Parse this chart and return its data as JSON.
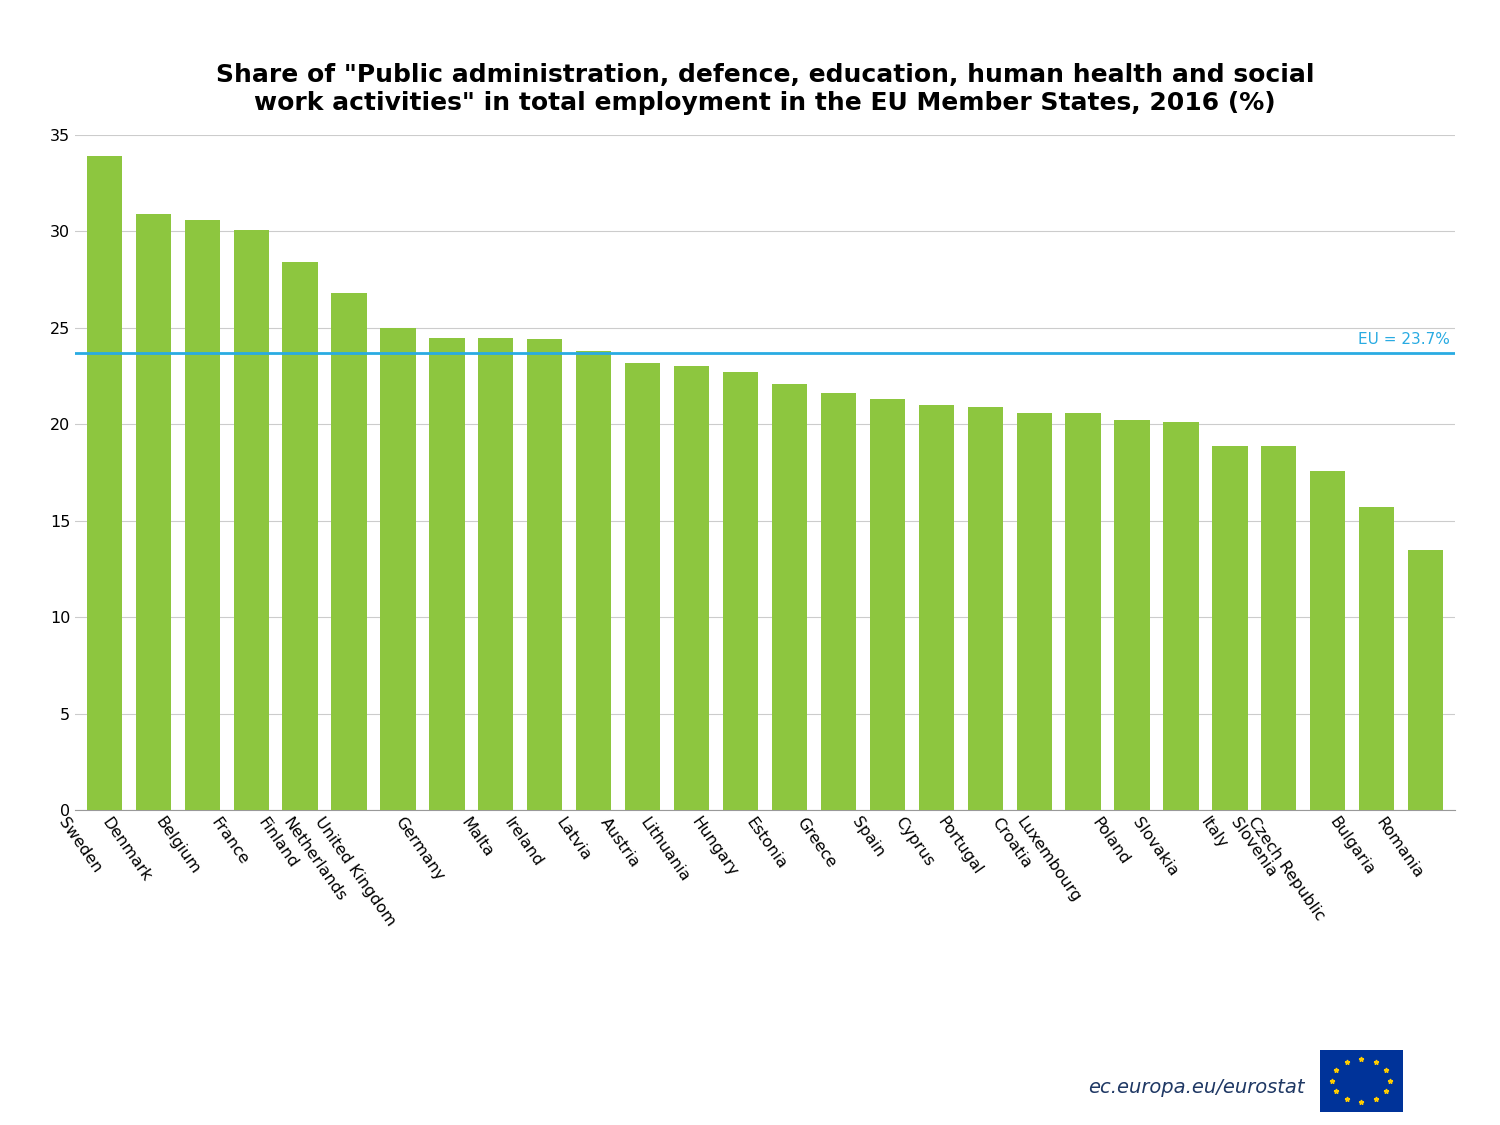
{
  "title": "Share of \"Public administration, defence, education, human health and social\nwork activities\" in total employment in the EU Member States, 2016 (%)",
  "categories": [
    "Sweden",
    "Denmark",
    "Belgium",
    "France",
    "Finland",
    "Netherlands",
    "United Kingdom",
    "Germany",
    "Malta",
    "Ireland",
    "Latvia",
    "Austria",
    "Lithuania",
    "Hungary",
    "Estonia",
    "Greece",
    "Spain",
    "Cyprus",
    "Portugal",
    "Croatia",
    "Luxembourg",
    "Poland",
    "Slovakia",
    "Italy",
    "Slovenia",
    "Czech Republic",
    "Bulgaria",
    "Romania"
  ],
  "values": [
    33.9,
    30.9,
    30.6,
    30.1,
    28.4,
    26.8,
    25.0,
    24.5,
    24.5,
    24.4,
    23.8,
    23.2,
    23.0,
    22.7,
    22.1,
    21.6,
    21.3,
    21.0,
    20.9,
    20.6,
    20.6,
    20.2,
    20.1,
    18.9,
    18.9,
    17.6,
    15.7,
    13.5
  ],
  "bar_color": "#8DC63F",
  "eu_line": 23.7,
  "eu_label": "EU = 23.7%",
  "ylim": [
    0,
    35
  ],
  "yticks": [
    0,
    5,
    10,
    15,
    20,
    25,
    30,
    35
  ],
  "line_color": "#29ABE2",
  "watermark": "ec.europa.eu/eurostat",
  "background_color": "#FFFFFF",
  "title_fontsize": 18,
  "tick_fontsize": 11.5,
  "bar_width": 0.72,
  "label_rotation": -55,
  "grid_color": "#CCCCCC",
  "eu_label_color": "#29ABE2",
  "eu_label_fontsize": 11,
  "logo_bg_color": "#003399",
  "logo_star_color": "#FFCC00",
  "watermark_color": "#1F3864",
  "watermark_fontsize": 14
}
